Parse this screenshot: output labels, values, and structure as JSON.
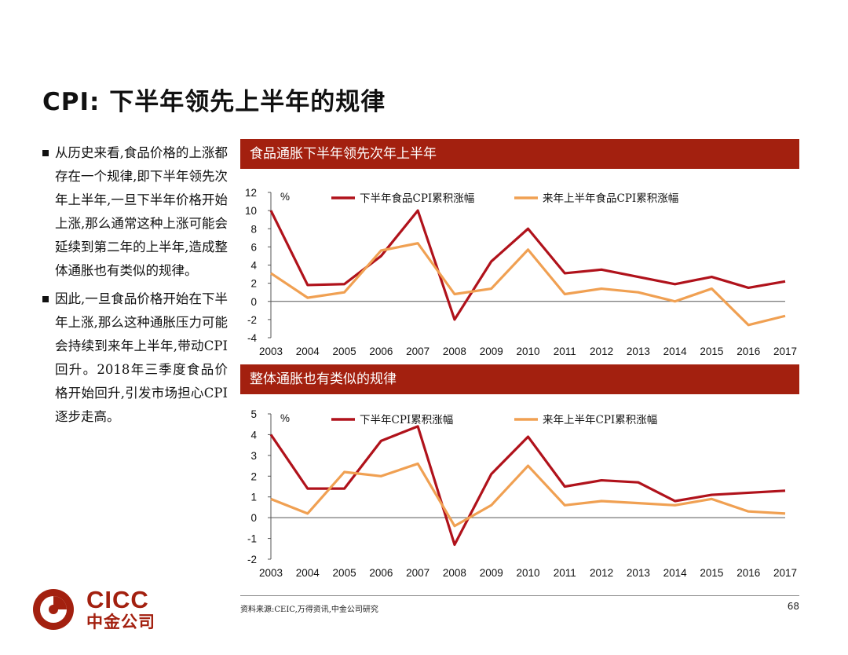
{
  "slide": {
    "title": "CPI: 下半年领先上半年的规律",
    "page_number": "68",
    "source": "资料来源:CEIC,万得资讯,中金公司研究"
  },
  "bullets": [
    "从历史来看,食品价格的上涨都存在一个规律,即下半年领先次年上半年,一旦下半年价格开始上涨,那么通常这种上涨可能会延续到第二年的上半年,造成整体通胀也有类似的规律。",
    "因此,一旦食品价格开始在下半年上涨,那么这种通胀压力可能会持续到来年上半年,带动CPI回升。2018年三季度食品价格开始回升,引发市场担心CPI逐步走高。"
  ],
  "logo": {
    "en": "CICC",
    "cn": "中金公司"
  },
  "colors": {
    "brand": "#a3200f",
    "series_red": "#b0121b",
    "series_orange": "#f0a052"
  },
  "chart_data": [
    {
      "type": "line",
      "title": "食品通胀下半年领先次年上半年",
      "unit_label": "%",
      "categories": [
        "2003",
        "2004",
        "2005",
        "2006",
        "2007",
        "2008",
        "2009",
        "2010",
        "2011",
        "2012",
        "2013",
        "2014",
        "2015",
        "2016",
        "2017"
      ],
      "ylim": [
        -4,
        12
      ],
      "yticks": [
        12,
        10,
        8,
        6,
        4,
        2,
        0,
        -2,
        -4
      ],
      "series": [
        {
          "name": "下半年食品CPI累积涨幅",
          "color": "#b0121b",
          "values": [
            10.0,
            1.8,
            1.9,
            5.0,
            10.0,
            -2.0,
            4.4,
            8.0,
            3.1,
            3.5,
            2.7,
            1.9,
            2.7,
            1.5,
            2.2
          ]
        },
        {
          "name": "来年上半年食品CPI累积涨幅",
          "color": "#f0a052",
          "values": [
            3.1,
            0.4,
            1.0,
            5.6,
            6.4,
            0.8,
            1.4,
            5.7,
            0.8,
            1.4,
            1.0,
            0.0,
            1.4,
            -2.6,
            -1.6
          ]
        }
      ]
    },
    {
      "type": "line",
      "title": "整体通胀也有类似的规律",
      "unit_label": "%",
      "categories": [
        "2003",
        "2004",
        "2005",
        "2006",
        "2007",
        "2008",
        "2009",
        "2010",
        "2011",
        "2012",
        "2013",
        "2014",
        "2015",
        "2016",
        "2017"
      ],
      "ylim": [
        -2,
        5
      ],
      "yticks": [
        5,
        4,
        3,
        2,
        1,
        0,
        -1,
        -2
      ],
      "series": [
        {
          "name": "下半年CPI累积涨幅",
          "color": "#b0121b",
          "values": [
            4.0,
            1.4,
            1.4,
            3.7,
            4.4,
            -1.3,
            2.1,
            3.9,
            1.5,
            1.8,
            1.7,
            0.8,
            1.1,
            1.2,
            1.3
          ]
        },
        {
          "name": "来年上半年CPI累积涨幅",
          "color": "#f0a052",
          "values": [
            0.9,
            0.2,
            2.2,
            2.0,
            2.6,
            -0.4,
            0.6,
            2.5,
            0.6,
            0.8,
            0.7,
            0.6,
            0.9,
            0.3,
            0.2
          ]
        }
      ]
    }
  ]
}
